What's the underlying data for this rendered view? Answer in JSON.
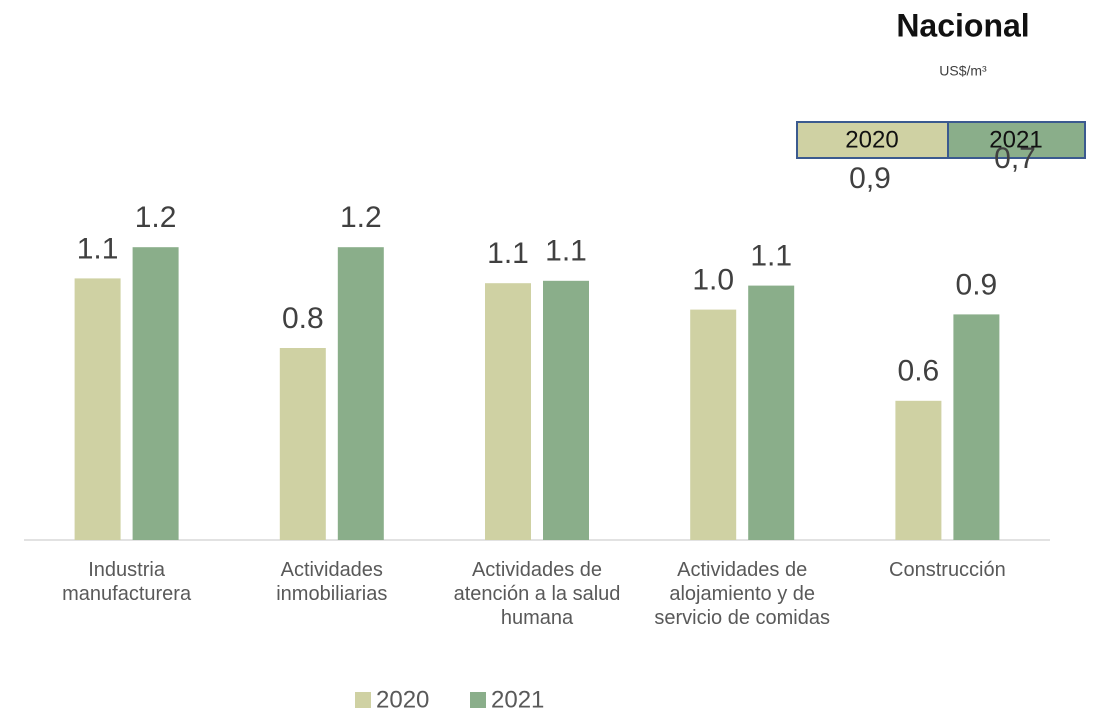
{
  "chart_data": {
    "type": "bar",
    "categories": [
      "Industria manufacturera",
      "Actividades inmobiliarias",
      "Actividades de atención a la salud humana",
      "Actividades de alojamiento y de servicio de comidas",
      "Construcción"
    ],
    "series": [
      {
        "name": "2020",
        "color": "#cfd1a3",
        "values": [
          1.09,
          0.8,
          1.07,
          0.96,
          0.58
        ],
        "value_labels": [
          "1.1",
          "0.8",
          "1.1",
          "1.0",
          "0.6"
        ]
      },
      {
        "name": "2021",
        "color": "#8aae8a",
        "values": [
          1.22,
          1.22,
          1.08,
          1.06,
          0.94
        ],
        "value_labels": [
          "1.2",
          "1.2",
          "1.1",
          "1.1",
          "0.9"
        ]
      }
    ],
    "ylim": [
      0,
      1.4
    ],
    "legend": "bottom"
  },
  "summary": {
    "title": "Nacional",
    "unit": "US$/m³",
    "headers": [
      "2020",
      "2021"
    ],
    "values": [
      "0,9",
      "0,7"
    ]
  }
}
